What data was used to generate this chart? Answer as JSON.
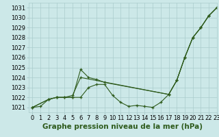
{
  "title": "Graphe pression niveau de la mer (hPa)",
  "background_color": "#cce8e8",
  "grid_color": "#aacccc",
  "line_color": "#2d5a1b",
  "xlim": [
    -0.5,
    23
  ],
  "ylim": [
    1020.5,
    1031.5
  ],
  "yticks": [
    1021,
    1022,
    1023,
    1024,
    1025,
    1026,
    1027,
    1028,
    1029,
    1030,
    1031
  ],
  "xticks": [
    0,
    1,
    2,
    3,
    4,
    5,
    6,
    7,
    8,
    9,
    10,
    11,
    12,
    13,
    14,
    15,
    16,
    17,
    18,
    19,
    20,
    21,
    22,
    23
  ],
  "series1_x": [
    0,
    1,
    2,
    3,
    4,
    5,
    6,
    7,
    8,
    9,
    10,
    11,
    12,
    13,
    14,
    15,
    16,
    17,
    18,
    19,
    20,
    21,
    22,
    23
  ],
  "series1_y": [
    1021.0,
    1021.1,
    1021.8,
    1022.0,
    1022.0,
    1022.0,
    1022.0,
    1023.0,
    1023.3,
    1023.3,
    1022.2,
    1021.5,
    1021.1,
    1021.2,
    1021.1,
    1021.0,
    1021.5,
    1022.3,
    1023.7,
    1026.0,
    1028.0,
    1029.0,
    1030.2,
    1031.0
  ],
  "series2_x": [
    0,
    2,
    3,
    5,
    6,
    7,
    8,
    9,
    17,
    18,
    19,
    20,
    21,
    22,
    23
  ],
  "series2_y": [
    1021.0,
    1021.8,
    1022.0,
    1022.0,
    1024.8,
    1024.0,
    1023.8,
    1023.5,
    1022.3,
    1023.7,
    1026.0,
    1028.0,
    1029.0,
    1030.2,
    1031.0
  ],
  "series3_x": [
    0,
    2,
    3,
    4,
    5,
    6,
    17,
    18,
    19,
    20,
    21,
    22,
    23
  ],
  "series3_y": [
    1021.0,
    1021.8,
    1022.0,
    1022.0,
    1022.2,
    1024.0,
    1022.3,
    1023.7,
    1026.0,
    1028.0,
    1029.0,
    1030.2,
    1031.0
  ],
  "xlabel_fontsize": 7.5,
  "tick_fontsize": 6
}
